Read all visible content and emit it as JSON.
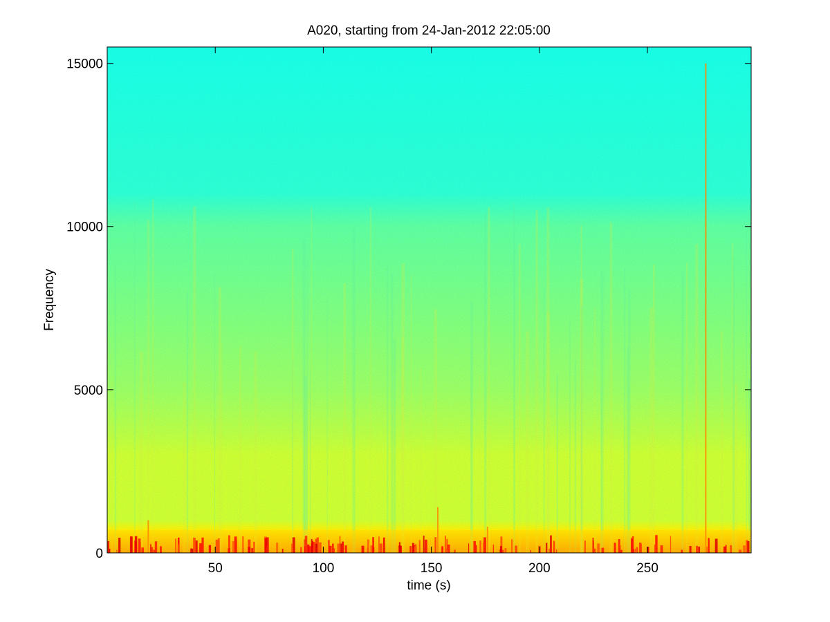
{
  "chart_data": {
    "type": "heatmap",
    "title": "A020, starting from 24-Jan-2012 22:05:00",
    "xlabel": "time (s)",
    "ylabel": "Frequency",
    "xlim": [
      0,
      298
    ],
    "ylim": [
      0,
      15500
    ],
    "xticks": [
      50,
      100,
      150,
      200,
      250
    ],
    "yticks": [
      0,
      5000,
      10000,
      15000
    ],
    "colormap": [
      "#00007f",
      "#0000ff",
      "#007fff",
      "#00ffff",
      "#7fff7f",
      "#ffff00",
      "#ff7f00",
      "#ff0000",
      "#7f0000"
    ],
    "background_profile": [
      {
        "frequency": 0,
        "level": 0.78
      },
      {
        "frequency": 200,
        "level": 0.74
      },
      {
        "frequency": 700,
        "level": 0.64
      },
      {
        "frequency": 1000,
        "level": 0.58
      },
      {
        "frequency": 3000,
        "level": 0.58
      },
      {
        "frequency": 3700,
        "level": 0.56
      },
      {
        "frequency": 5000,
        "level": 0.53
      },
      {
        "frequency": 7500,
        "level": 0.5
      },
      {
        "frequency": 10000,
        "level": 0.47
      },
      {
        "frequency": 11000,
        "level": 0.42
      },
      {
        "frequency": 15500,
        "level": 0.4
      }
    ],
    "transients": [
      {
        "time": 19,
        "max_frequency": 1000
      },
      {
        "time": 153,
        "max_frequency": 1400
      },
      {
        "time": 176,
        "max_frequency": 800
      },
      {
        "time": 277,
        "max_frequency": 15000
      }
    ],
    "grid": false
  }
}
